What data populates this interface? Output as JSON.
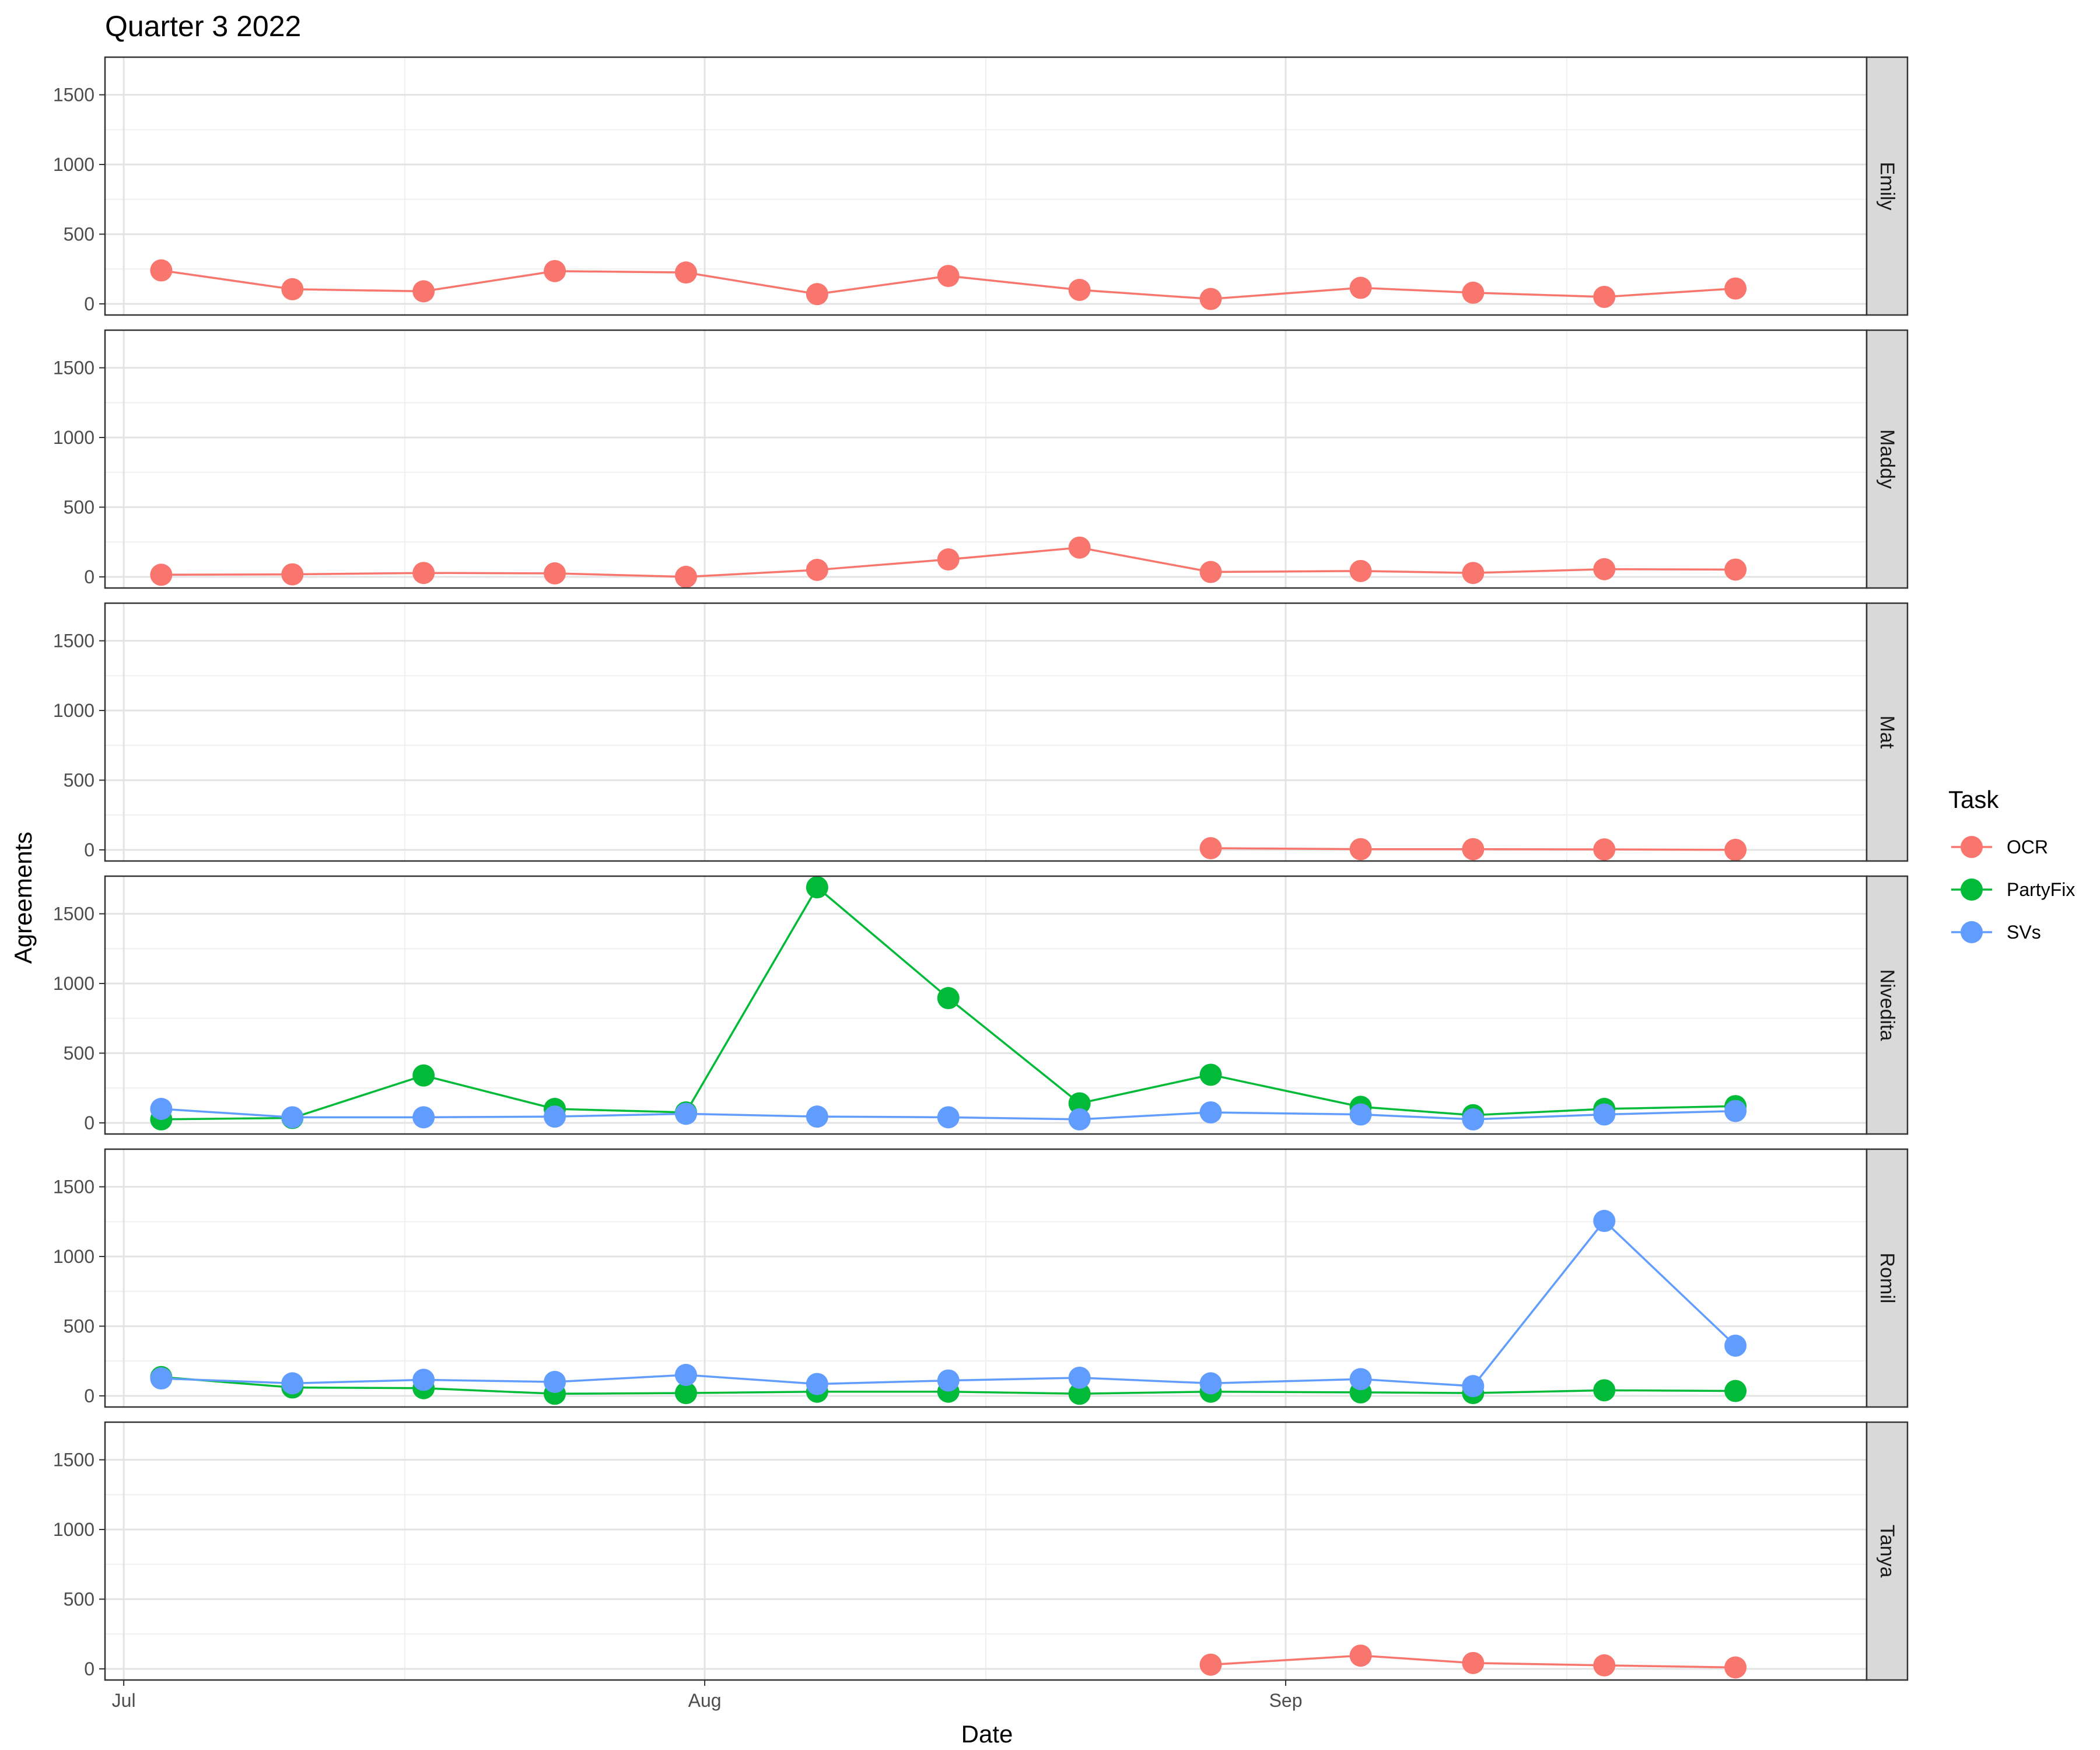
{
  "chart_data": {
    "type": "line",
    "title": "Quarter 3 2022",
    "xlabel": "Date",
    "ylabel": "Agreements",
    "x_ticks": [
      {
        "label": "Jul",
        "date": "2022-07-01"
      },
      {
        "label": "Aug",
        "date": "2022-08-01"
      },
      {
        "label": "Sep",
        "date": "2022-09-01"
      }
    ],
    "xlim": [
      "2022-06-30",
      "2022-10-02"
    ],
    "y_ticks": [
      0,
      500,
      1000,
      1500
    ],
    "ylim": [
      -80,
      1770
    ],
    "grid": true,
    "legend": {
      "title": "Task",
      "position": "right",
      "entries": [
        {
          "name": "OCR",
          "color": "#F8766D"
        },
        {
          "name": "PartyFix",
          "color": "#00BA38"
        },
        {
          "name": "SVs",
          "color": "#619CFF"
        }
      ]
    },
    "dates": [
      "2022-07-03",
      "2022-07-10",
      "2022-07-17",
      "2022-07-24",
      "2022-07-31",
      "2022-08-07",
      "2022-08-14",
      "2022-08-21",
      "2022-08-28",
      "2022-09-05",
      "2022-09-11",
      "2022-09-18",
      "2022-09-25"
    ],
    "panels": [
      {
        "name": "Emily",
        "series": [
          {
            "task": "OCR",
            "points": [
              [
                "2022-07-03",
                240
              ],
              [
                "2022-07-10",
                105
              ],
              [
                "2022-07-17",
                90
              ],
              [
                "2022-07-24",
                235
              ],
              [
                "2022-07-31",
                225
              ],
              [
                "2022-08-07",
                70
              ],
              [
                "2022-08-14",
                200
              ],
              [
                "2022-08-21",
                100
              ],
              [
                "2022-08-28",
                35
              ],
              [
                "2022-09-05",
                115
              ],
              [
                "2022-09-11",
                80
              ],
              [
                "2022-09-18",
                50
              ],
              [
                "2022-09-25",
                110
              ]
            ]
          }
        ]
      },
      {
        "name": "Maddy",
        "series": [
          {
            "task": "OCR",
            "points": [
              [
                "2022-07-03",
                15
              ],
              [
                "2022-07-10",
                18
              ],
              [
                "2022-07-17",
                28
              ],
              [
                "2022-07-24",
                25
              ],
              [
                "2022-07-31",
                0
              ],
              [
                "2022-08-07",
                50
              ],
              [
                "2022-08-14",
                125
              ],
              [
                "2022-08-21",
                210
              ],
              [
                "2022-08-28",
                35
              ],
              [
                "2022-09-05",
                42
              ],
              [
                "2022-09-11",
                28
              ],
              [
                "2022-09-18",
                55
              ],
              [
                "2022-09-25",
                52
              ]
            ]
          }
        ]
      },
      {
        "name": "Mat",
        "series": [
          {
            "task": "OCR",
            "points": [
              [
                "2022-08-28",
                12
              ],
              [
                "2022-09-05",
                5
              ],
              [
                "2022-09-11",
                5
              ],
              [
                "2022-09-18",
                3
              ],
              [
                "2022-09-25",
                0
              ]
            ]
          }
        ]
      },
      {
        "name": "Nivedita",
        "series": [
          {
            "task": "PartyFix",
            "points": [
              [
                "2022-07-03",
                25
              ],
              [
                "2022-07-10",
                35
              ],
              [
                "2022-07-17",
                340
              ],
              [
                "2022-07-24",
                100
              ],
              [
                "2022-07-31",
                75
              ],
              [
                "2022-08-07",
                1690
              ],
              [
                "2022-08-14",
                895
              ],
              [
                "2022-08-21",
                140
              ],
              [
                "2022-08-28",
                345
              ],
              [
                "2022-09-05",
                115
              ],
              [
                "2022-09-11",
                55
              ],
              [
                "2022-09-18",
                100
              ],
              [
                "2022-09-25",
                120
              ]
            ]
          },
          {
            "task": "SVs",
            "points": [
              [
                "2022-07-03",
                100
              ],
              [
                "2022-07-10",
                40
              ],
              [
                "2022-07-17",
                40
              ],
              [
                "2022-07-24",
                45
              ],
              [
                "2022-07-31",
                65
              ],
              [
                "2022-08-07",
                45
              ],
              [
                "2022-08-14",
                40
              ],
              [
                "2022-08-21",
                25
              ],
              [
                "2022-08-28",
                75
              ],
              [
                "2022-09-05",
                60
              ],
              [
                "2022-09-11",
                25
              ],
              [
                "2022-09-18",
                60
              ],
              [
                "2022-09-25",
                85
              ]
            ]
          }
        ]
      },
      {
        "name": "Romil",
        "series": [
          {
            "task": "PartyFix",
            "points": [
              [
                "2022-07-03",
                135
              ],
              [
                "2022-07-10",
                60
              ],
              [
                "2022-07-17",
                55
              ],
              [
                "2022-07-24",
                15
              ],
              [
                "2022-07-31",
                20
              ],
              [
                "2022-08-07",
                30
              ],
              [
                "2022-08-14",
                30
              ],
              [
                "2022-08-21",
                15
              ],
              [
                "2022-08-28",
                30
              ],
              [
                "2022-09-05",
                25
              ],
              [
                "2022-09-11",
                20
              ],
              [
                "2022-09-18",
                40
              ],
              [
                "2022-09-25",
                35
              ]
            ]
          },
          {
            "task": "SVs",
            "points": [
              [
                "2022-07-03",
                125
              ],
              [
                "2022-07-10",
                90
              ],
              [
                "2022-07-17",
                115
              ],
              [
                "2022-07-24",
                100
              ],
              [
                "2022-07-31",
                150
              ],
              [
                "2022-08-07",
                85
              ],
              [
                "2022-08-14",
                110
              ],
              [
                "2022-08-21",
                130
              ],
              [
                "2022-08-28",
                90
              ],
              [
                "2022-09-05",
                120
              ],
              [
                "2022-09-11",
                70
              ],
              [
                "2022-09-18",
                1255
              ],
              [
                "2022-09-25",
                360
              ]
            ]
          }
        ]
      },
      {
        "name": "Tanya",
        "series": [
          {
            "task": "OCR",
            "points": [
              [
                "2022-08-28",
                30
              ],
              [
                "2022-09-05",
                95
              ],
              [
                "2022-09-11",
                42
              ],
              [
                "2022-09-18",
                25
              ],
              [
                "2022-09-25",
                10
              ]
            ]
          }
        ]
      }
    ]
  }
}
